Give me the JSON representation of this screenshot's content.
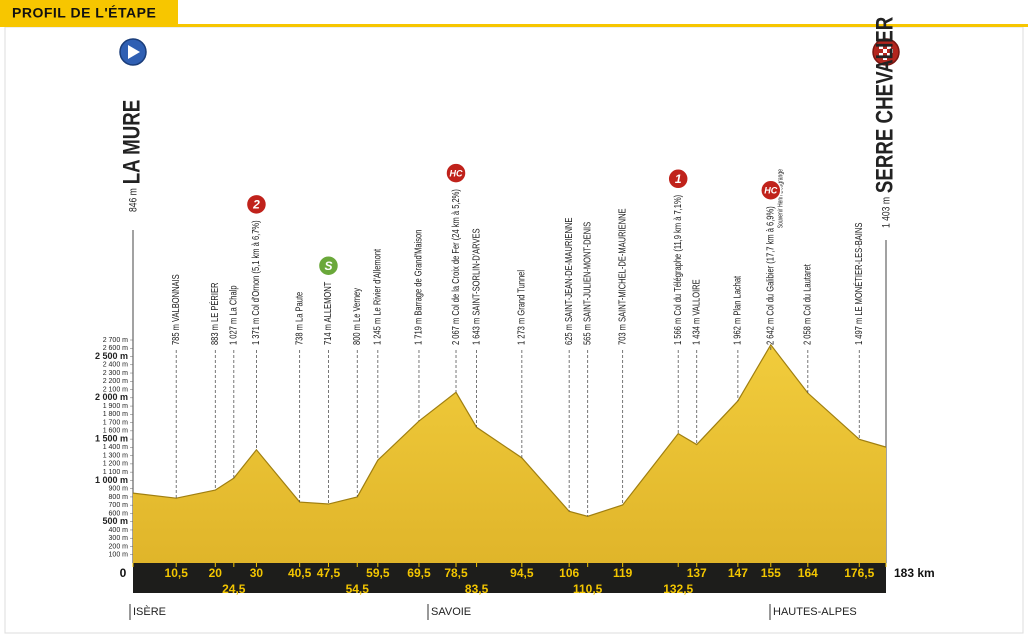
{
  "chart_data": {
    "type": "area",
    "title": "PROFIL DE L'ÉTAPE",
    "start": {
      "altitude_label": "846 m",
      "name": "LA MURE"
    },
    "finish": {
      "altitude_label": "1 403 m",
      "name": "SERRE CHEVALIER"
    },
    "x": [
      0,
      10.5,
      20,
      24.5,
      30,
      40.5,
      47.5,
      54.5,
      59.5,
      69.5,
      78.5,
      83.5,
      94.5,
      106,
      110.5,
      119,
      132.5,
      137,
      147,
      155,
      164,
      176.5,
      183
    ],
    "values": [
      846,
      785,
      883,
      1027,
      1371,
      738,
      714,
      800,
      1245,
      1719,
      2067,
      1643,
      1273,
      625,
      565,
      703,
      1566,
      1434,
      1962,
      2642,
      2058,
      1497,
      1403
    ],
    "color": "#f1cc3c",
    "waypoints": [
      {
        "label": "785 m VALBONNAIS"
      },
      {
        "label": "883 m LE PÉRIER"
      },
      {
        "label": "1 027 m La Chalp"
      },
      {
        "label": "1 371 m Col d'Ornon (5,1 km à 6,7%)",
        "climb": "2"
      },
      {
        "label": "738 m La Paute"
      },
      {
        "label": "714 m ALLEMONT",
        "climb": "S"
      },
      {
        "label": "800 m Le Verney"
      },
      {
        "label": "1 245 m Le Rivier d'Allemont"
      },
      {
        "label": "1 719 m Barrage de Grand'Maison"
      },
      {
        "label": "2 067 m Col de la Croix de Fer (24 km à 5,2%)",
        "climb": "HC"
      },
      {
        "label": "1 643 m SAINT-SORLIN-D'ARVES"
      },
      {
        "label": "1 273 m Grand Tunnel"
      },
      {
        "label": "625 m SAINT-JEAN-DE-MAURIENNE"
      },
      {
        "label": "565 m SAINT-JULIEN-MONT-DENIS"
      },
      {
        "label": "703 m SAINT-MICHEL-DE-MAURIENNE"
      },
      {
        "label": "1 566 m Col du Télégraphe (11,9 km à 7,1%)",
        "climb": "1"
      },
      {
        "label": "1 434 m VALLOIRE"
      },
      {
        "label": "1 962 m Plan Lachat"
      },
      {
        "label": "2 642 m Col du Galibier (17,7 km à 6,9%)",
        "climb": "HC",
        "note": "Souvenir Henri Desgrange"
      },
      {
        "label": "2 058 m Col du Lautaret"
      },
      {
        "label": "1 497 m LE MONÉTIER-LES-BAINS"
      }
    ],
    "xlim": [
      0,
      183
    ],
    "xticks": [
      0,
      {
        "value": 10.5,
        "label": "10,5"
      },
      20,
      {
        "value": 24.5,
        "label": "24,5"
      },
      30,
      {
        "value": 40.5,
        "label": "40,5"
      },
      {
        "value": 47.5,
        "label": "47,5"
      },
      {
        "value": 54.5,
        "label": "54,5"
      },
      {
        "value": 59.5,
        "label": "59,5"
      },
      {
        "value": 69.5,
        "label": "69,5"
      },
      {
        "value": 78.5,
        "label": "78,5"
      },
      {
        "value": 83.5,
        "label": "83,5"
      },
      {
        "value": 94.5,
        "label": "94,5"
      },
      106,
      {
        "value": 110.5,
        "label": "110,5"
      },
      119,
      {
        "value": 132.5,
        "label": "132,5"
      },
      137,
      147,
      155,
      164,
      {
        "value": 176.5,
        "label": "176,5"
      },
      {
        "value": 183,
        "label": "183 km"
      }
    ],
    "ylim": [
      0,
      2700
    ],
    "yticks": [
      {
        "value": 100,
        "label": "100 m"
      },
      {
        "value": 200,
        "label": "200 m"
      },
      {
        "value": 300,
        "label": "300 m"
      },
      {
        "value": 400,
        "label": "400 m"
      },
      {
        "value": 500,
        "label": "500 m"
      },
      {
        "value": 600,
        "label": "600 m"
      },
      {
        "value": 700,
        "label": "700 m"
      },
      {
        "value": 800,
        "label": "800 m"
      },
      {
        "value": 900,
        "label": "900 m"
      },
      {
        "value": 1000,
        "label": "1 000 m"
      },
      {
        "value": 1100,
        "label": "1 100 m"
      },
      {
        "value": 1200,
        "label": "1 200 m"
      },
      {
        "value": 1300,
        "label": "1 300 m"
      },
      {
        "value": 1400,
        "label": "1 400 m"
      },
      {
        "value": 1500,
        "label": "1 500 m"
      },
      {
        "value": 1600,
        "label": "1 600 m"
      },
      {
        "value": 1700,
        "label": "1 700 m"
      },
      {
        "value": 1800,
        "label": "1 800 m"
      },
      {
        "value": 1900,
        "label": "1 900 m"
      },
      {
        "value": 2000,
        "label": "2 000 m"
      },
      {
        "value": 2100,
        "label": "2 100 m"
      },
      {
        "value": 2200,
        "label": "2 200 m"
      },
      {
        "value": 2300,
        "label": "2 300 m"
      },
      {
        "value": 2400,
        "label": "2 400 m"
      },
      {
        "value": 2500,
        "label": "2 500 m"
      },
      {
        "value": 2600,
        "label": "2 600 m"
      },
      {
        "value": 2700,
        "label": "2 700 m"
      }
    ],
    "regions": [
      "ISÈRE",
      "SAVOIE",
      "HAUTES-ALPES"
    ]
  }
}
